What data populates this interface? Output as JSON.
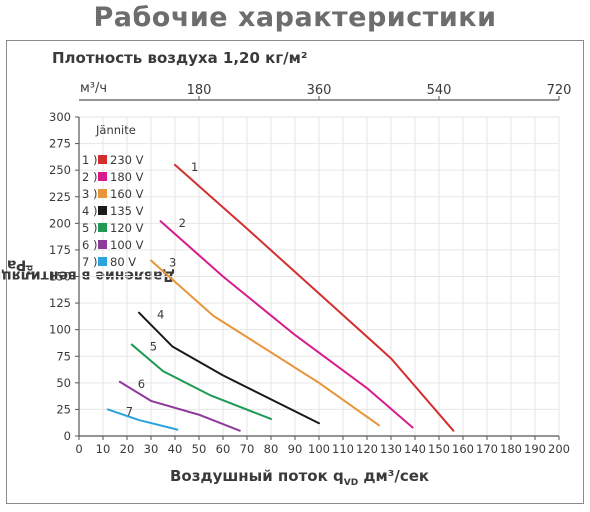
{
  "title": "Рабочие характеристики",
  "chart_data": {
    "type": "line",
    "density_label": "Плотность воздуха 1,20 кг/м²",
    "ylabel": "Давление в вентиляционной системе p",
    "ylabel_sub": "td",
    "ylabel_unit": "Pa",
    "xlabel_main": "Воздушный поток q",
    "xlabel_sub": "VD",
    "xlabel_unit": "дм³/сек",
    "top_axis_unit": "м³/ч",
    "top_ticks": [
      "180",
      "360",
      "540",
      "720"
    ],
    "top_tick_values": [
      50,
      100,
      150,
      200
    ],
    "x_ticks": [
      "0",
      "10",
      "20",
      "30",
      "40",
      "50",
      "60",
      "70",
      "80",
      "90",
      "100",
      "110",
      "120",
      "130",
      "140",
      "150",
      "160",
      "170",
      "180",
      "190",
      "200"
    ],
    "y_ticks": [
      "0",
      "25",
      "50",
      "75",
      "100",
      "125",
      "150",
      "175",
      "200",
      "225",
      "250",
      "275",
      "300"
    ],
    "xlim": [
      0,
      200
    ],
    "ylim": [
      0,
      300
    ],
    "legend_title": "Jännite",
    "legend_items": [
      {
        "num": "1 )",
        "label": "230 V",
        "color": "#d32f2f"
      },
      {
        "num": "2 )",
        "label": "180 V",
        "color": "#d81b8c"
      },
      {
        "num": "3 )",
        "label": "160 V",
        "color": "#e8953a"
      },
      {
        "num": "4 )",
        "label": "135 V",
        "color": "#1a1a1a"
      },
      {
        "num": "5 )",
        "label": "120 V",
        "color": "#1e9a55"
      },
      {
        "num": "6 )",
        "label": "100 V",
        "color": "#8e3a9a"
      },
      {
        "num": "7 )",
        "label": " 80 V",
        "color": "#2aa4dc"
      }
    ],
    "series": [
      {
        "name": "1",
        "color": "#d32f2f",
        "x": [
          40,
          70,
          130,
          156
        ],
        "y": [
          255,
          195,
          73,
          5
        ]
      },
      {
        "name": "2",
        "color": "#d81b8c",
        "x": [
          34,
          60,
          90,
          120,
          139
        ],
        "y": [
          202,
          150,
          95,
          45,
          8
        ]
      },
      {
        "name": "3",
        "color": "#e8953a",
        "x": [
          30,
          56,
          100,
          125
        ],
        "y": [
          165,
          113,
          50,
          10
        ]
      },
      {
        "name": "4",
        "color": "#1a1a1a",
        "x": [
          25,
          39,
          60,
          100
        ],
        "y": [
          116,
          84,
          57,
          12
        ]
      },
      {
        "name": "5",
        "color": "#1e9a55",
        "x": [
          22,
          35,
          55,
          80
        ],
        "y": [
          86,
          61,
          38,
          16
        ]
      },
      {
        "name": "6",
        "color": "#8e3a9a",
        "x": [
          17,
          30,
          50,
          67
        ],
        "y": [
          51,
          33,
          20,
          5
        ]
      },
      {
        "name": "7",
        "color": "#2aa4dc",
        "x": [
          12,
          25,
          41
        ],
        "y": [
          25,
          15,
          6
        ]
      }
    ]
  }
}
